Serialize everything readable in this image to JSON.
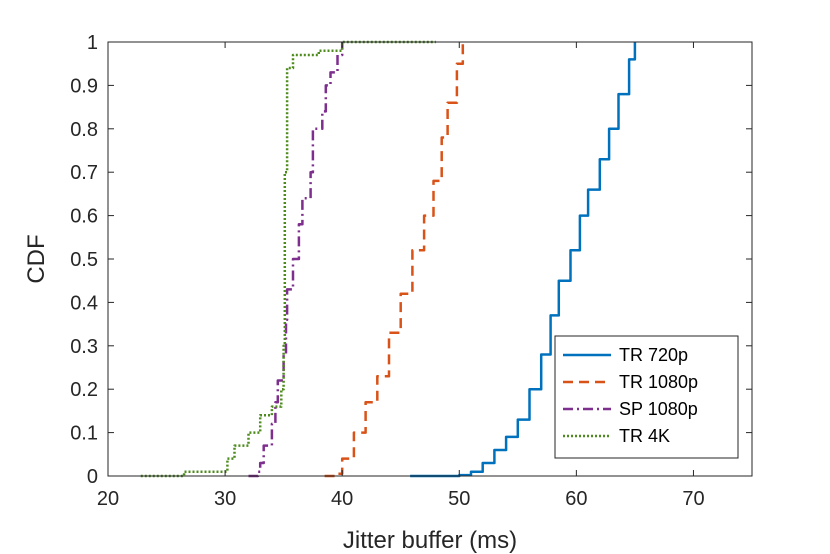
{
  "chart_data": {
    "type": "line",
    "xlabel": "Jitter buffer (ms)",
    "ylabel": "CDF",
    "xlim": [
      20,
      75
    ],
    "ylim": [
      0,
      1
    ],
    "xticks": [
      20,
      30,
      40,
      50,
      60,
      70
    ],
    "yticks": [
      0,
      0.1,
      0.2,
      0.3,
      0.4,
      0.5,
      0.6,
      0.7,
      0.8,
      0.9,
      1
    ],
    "grid": false,
    "legend_position": "bottom-right",
    "series": [
      {
        "name": "TR 720p",
        "color": "#0072BD",
        "style": "solid",
        "points": [
          [
            45.8,
            0
          ],
          [
            50,
            0.002
          ],
          [
            51,
            0.01
          ],
          [
            52,
            0.03
          ],
          [
            53,
            0.06
          ],
          [
            54,
            0.09
          ],
          [
            55,
            0.13
          ],
          [
            56,
            0.2
          ],
          [
            57,
            0.28
          ],
          [
            57.8,
            0.37
          ],
          [
            58.5,
            0.45
          ],
          [
            59.5,
            0.52
          ],
          [
            60.3,
            0.6
          ],
          [
            61,
            0.66
          ],
          [
            62,
            0.73
          ],
          [
            62.8,
            0.8
          ],
          [
            63.6,
            0.88
          ],
          [
            64.5,
            0.96
          ],
          [
            65,
            1.0
          ]
        ]
      },
      {
        "name": "TR 1080p",
        "color": "#D95319",
        "style": "dashed",
        "points": [
          [
            38.5,
            0
          ],
          [
            39.5,
            0.005
          ],
          [
            40,
            0.04
          ],
          [
            41,
            0.1
          ],
          [
            42,
            0.17
          ],
          [
            43,
            0.23
          ],
          [
            44,
            0.33
          ],
          [
            45,
            0.42
          ],
          [
            46,
            0.52
          ],
          [
            47,
            0.6
          ],
          [
            47.8,
            0.68
          ],
          [
            48.5,
            0.78
          ],
          [
            49,
            0.86
          ],
          [
            49.8,
            0.95
          ],
          [
            50.3,
            1.0
          ]
        ]
      },
      {
        "name": "SP 1080p",
        "color": "#7E2F8E",
        "style": "dashdot",
        "points": [
          [
            32,
            0
          ],
          [
            32.8,
            0.01
          ],
          [
            33,
            0.03
          ],
          [
            33.3,
            0.07
          ],
          [
            34,
            0.12
          ],
          [
            34.3,
            0.17
          ],
          [
            34.5,
            0.22
          ],
          [
            35,
            0.28
          ],
          [
            35.2,
            0.36
          ],
          [
            35.3,
            0.43
          ],
          [
            35.8,
            0.5
          ],
          [
            36.3,
            0.58
          ],
          [
            36.6,
            0.64
          ],
          [
            37.3,
            0.7
          ],
          [
            37.5,
            0.8
          ],
          [
            38.3,
            0.84
          ],
          [
            38.6,
            0.9
          ],
          [
            39,
            0.93
          ],
          [
            39.6,
            0.97
          ],
          [
            40,
            1.0
          ]
        ]
      },
      {
        "name": "TR 4K",
        "color": "#4D8C1C",
        "style": "dotted",
        "points": [
          [
            22.8,
            0
          ],
          [
            26.5,
            0.01
          ],
          [
            30,
            0.01
          ],
          [
            30.2,
            0.04
          ],
          [
            30.8,
            0.07
          ],
          [
            32,
            0.1
          ],
          [
            33,
            0.14
          ],
          [
            34,
            0.16
          ],
          [
            34.8,
            0.2
          ],
          [
            35,
            0.3
          ],
          [
            35.1,
            0.5
          ],
          [
            35.1,
            0.7
          ],
          [
            35.3,
            0.94
          ],
          [
            35.8,
            0.97
          ],
          [
            38,
            0.98
          ],
          [
            40,
            1.0
          ],
          [
            48,
            1.0
          ]
        ]
      }
    ]
  }
}
